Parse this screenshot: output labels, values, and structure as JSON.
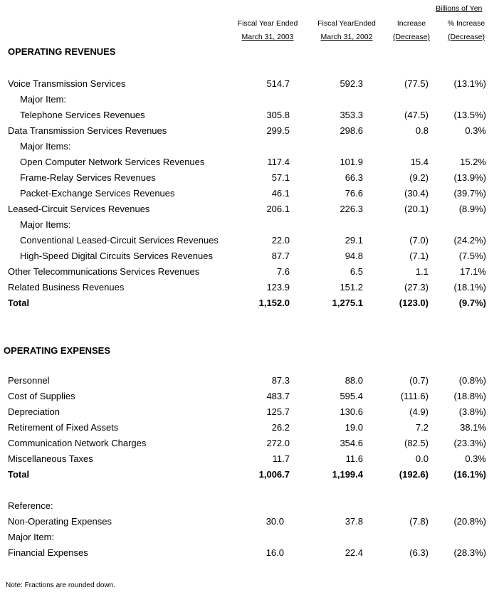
{
  "header": {
    "unit": "Billions of Yen",
    "col1": [
      "Fiscal Year Ended",
      "March 31, 2003"
    ],
    "col2": [
      "Fiscal YearEnded",
      "March 31, 2002"
    ],
    "col3": [
      "Increase",
      "(Decrease)"
    ],
    "col4": [
      "% Increase",
      "(Decrease)"
    ]
  },
  "revenues": {
    "title": "OPERATING REVENUES",
    "rows": [
      {
        "label": "Voice Transmission Services",
        "values": [
          "514.7",
          "592.3",
          "(77.5)",
          "(13.1%)"
        ]
      },
      {
        "label": "Major Item:",
        "indent": true,
        "values": []
      },
      {
        "label": "Telephone Services Revenues",
        "indent": true,
        "values": [
          "305.8",
          "353.3",
          "(47.5)",
          "(13.5%)"
        ]
      },
      {
        "label": "Data Transmission Services Revenues",
        "values": [
          "299.5",
          "298.6",
          "0.8",
          "0.3%"
        ]
      },
      {
        "label": "Major Items:",
        "indent": true,
        "values": []
      },
      {
        "label": "Open Computer Network Services Revenues",
        "indent": true,
        "values": [
          "117.4",
          "101.9",
          "15.4",
          "15.2%"
        ]
      },
      {
        "label": "Frame-Relay Services Revenues",
        "indent": true,
        "values": [
          "57.1",
          "66.3",
          "(9.2)",
          "(13.9%)"
        ]
      },
      {
        "label": "Packet-Exchange Services Revenues",
        "indent": true,
        "values": [
          "46.1",
          "76.6",
          "(30.4)",
          "(39.7%)"
        ]
      },
      {
        "label": "Leased-Circuit Services Revenues",
        "values": [
          "206.1",
          "226.3",
          "(20.1)",
          "(8.9%)"
        ]
      },
      {
        "label": "Major Items:",
        "indent": true,
        "values": []
      },
      {
        "label": "Conventional Leased-Circuit Services Revenues",
        "indent": true,
        "values": [
          "22.0",
          "29.1",
          "(7.0)",
          "(24.2%)"
        ]
      },
      {
        "label": "High-Speed Digital Circuits Services Revenues",
        "indent": true,
        "values": [
          "87.7",
          "94.8",
          "(7.1)",
          "(7.5%)"
        ]
      },
      {
        "label": "Other Telecommunications Services Revenues",
        "values": [
          "7.6",
          "6.5",
          "1.1",
          "17.1%"
        ]
      },
      {
        "label": "Related Business Revenues",
        "values": [
          "123.9",
          "151.2",
          "(27.3)",
          "(18.1%)"
        ]
      },
      {
        "label": "Total",
        "bold": true,
        "values": [
          "1,152.0",
          "1,275.1",
          "(123.0)",
          "(9.7%)"
        ]
      }
    ]
  },
  "expenses": {
    "title": "OPERATING EXPENSES",
    "rows": [
      {
        "label": "Personnel",
        "values": [
          "87.3",
          "88.0",
          "(0.7)",
          "(0.8%)"
        ]
      },
      {
        "label": "Cost of Supplies",
        "values": [
          "483.7",
          "595.4",
          "(111.6)",
          "(18.8%)"
        ]
      },
      {
        "label": "Depreciation",
        "values": [
          "125.7",
          "130.6",
          "(4.9)",
          "(3.8%)"
        ]
      },
      {
        "label": "Retirement of Fixed Assets",
        "values": [
          "26.2",
          "19.0",
          "7.2",
          "38.1%"
        ]
      },
      {
        "label": "Communication Network Charges",
        "values": [
          "272.0",
          "354.6",
          "(82.5)",
          "(23.3%)"
        ]
      },
      {
        "label": "Miscellaneous Taxes",
        "values": [
          "11.7",
          "11.6",
          "0.0",
          "0.3%"
        ]
      },
      {
        "label": "Total",
        "bold": true,
        "values": [
          "1,006.7",
          "1,199.4",
          "(192.6)",
          "(16.1%)"
        ]
      }
    ]
  },
  "reference": {
    "rows": [
      {
        "label": "Reference:",
        "values": []
      },
      {
        "label": "Non-Operating Expenses",
        "values": [
          "30.0",
          "37.8",
          "(7.8)",
          "(20.8%)"
        ]
      },
      {
        "label": "Major Item:",
        "values": []
      },
      {
        "label": "Financial Expenses",
        "values": [
          "16.0",
          "22.4",
          "(6.3)",
          "(28.3%)"
        ]
      }
    ]
  },
  "note": "Note: Fractions are rounded down."
}
